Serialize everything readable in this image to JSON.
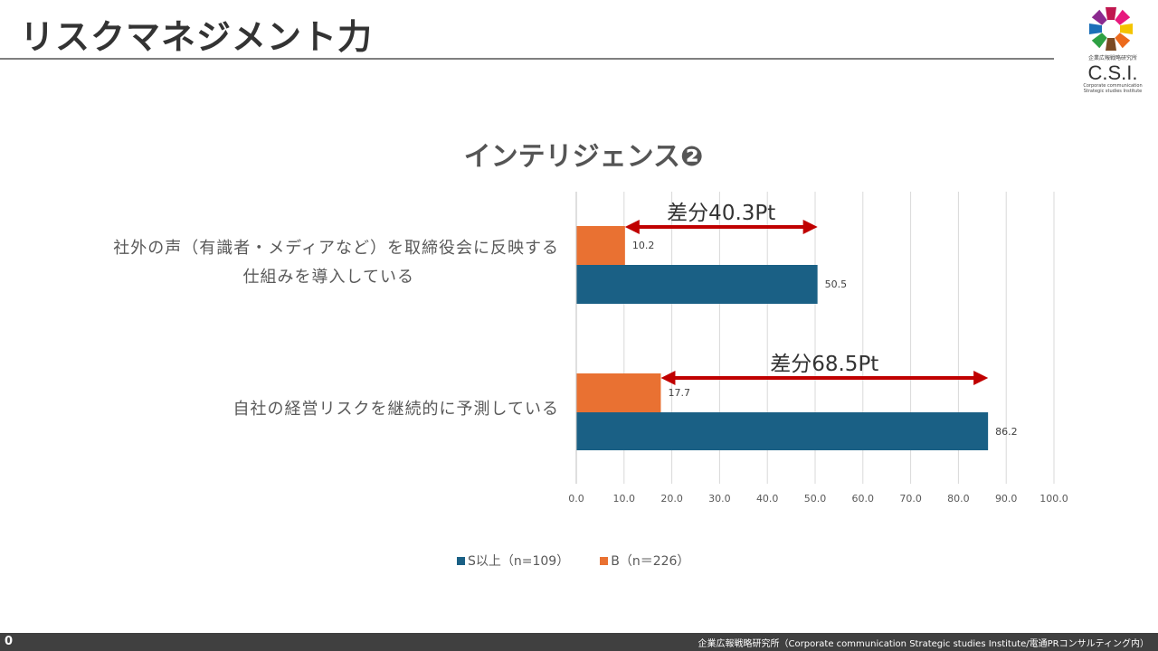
{
  "header": {
    "title": "リスクマネジメント力"
  },
  "logo": {
    "text": "企業広報戦略研究所",
    "abbr": "C.S.I.",
    "sub1": "Corporate communication",
    "sub2": "Strategic studies Institute"
  },
  "footer": {
    "page": "0",
    "text": "企業広報戦略研究所（Corporate communication Strategic studies Institute/電通PRコンサルティング内）"
  },
  "chart_data": {
    "type": "bar",
    "orientation": "horizontal",
    "title": "インテリジェンス❷",
    "categories": [
      [
        "社外の声（有識者・メディアなど）を取締役会に反映する",
        "仕組みを導入している"
      ],
      [
        "自社の経営リスクを継続的に予測している"
      ]
    ],
    "series": [
      {
        "name": "S以上（n=109）",
        "color": "#1a6085",
        "values": [
          50.5,
          86.2
        ],
        "labels": [
          "50.5",
          "86.2"
        ]
      },
      {
        "name": "B（n＝226）",
        "color": "#e97132",
        "values": [
          10.2,
          17.7
        ],
        "labels": [
          "10.2",
          "17.7"
        ]
      }
    ],
    "xlim": [
      0,
      100
    ],
    "ticks": [
      "0.0",
      "10.0",
      "20.0",
      "30.0",
      "40.0",
      "50.0",
      "60.0",
      "70.0",
      "80.0",
      "90.0",
      "100.0"
    ],
    "grid": true,
    "legend": "bottom",
    "annotations": [
      {
        "text": "差分40.3Pt",
        "from": 10.2,
        "to": 50.5
      },
      {
        "text": "差分68.5Pt",
        "from": 17.7,
        "to": 86.2
      }
    ],
    "annotation_color": "#c00000"
  }
}
